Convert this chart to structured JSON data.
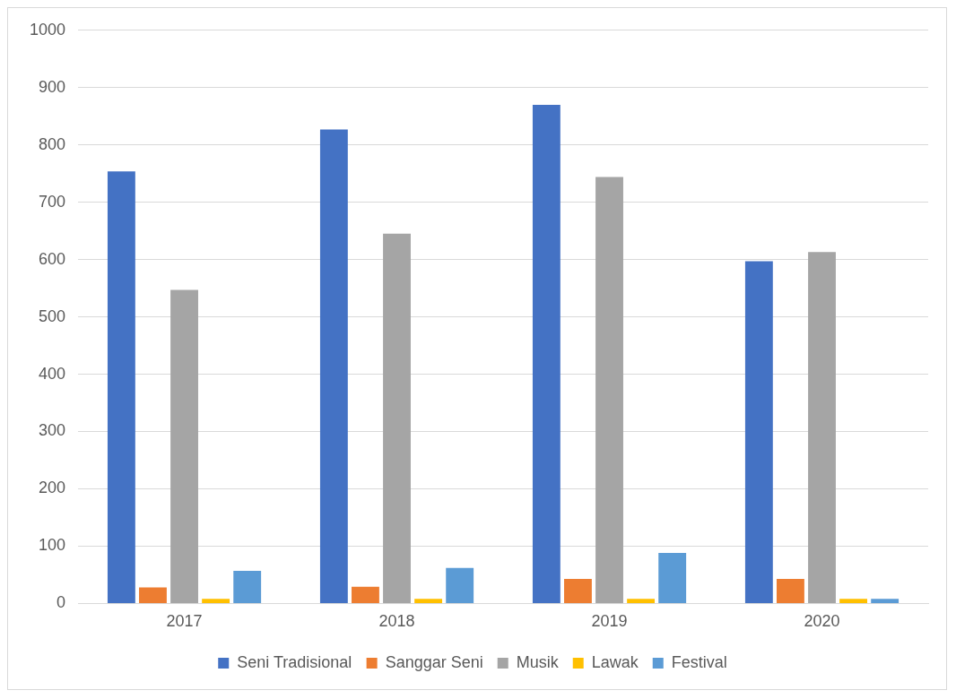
{
  "chart_data": {
    "type": "bar",
    "categories": [
      "2017",
      "2018",
      "2019",
      "2020"
    ],
    "series": [
      {
        "name": "Seni Tradisional",
        "color": "#4472c4",
        "values": [
          754,
          827,
          870,
          597
        ]
      },
      {
        "name": "Sanggar Seni",
        "color": "#ed7d31",
        "values": [
          28,
          29,
          43,
          43
        ]
      },
      {
        "name": "Musik",
        "color": "#a5a5a5",
        "values": [
          547,
          645,
          744,
          613
        ]
      },
      {
        "name": "Lawak",
        "color": "#ffc000",
        "values": [
          8,
          8,
          8,
          8
        ]
      },
      {
        "name": "Festival",
        "color": "#5b9bd5",
        "values": [
          57,
          62,
          88,
          8
        ]
      }
    ],
    "ylim": [
      0,
      1000
    ],
    "yticks": [
      0,
      100,
      200,
      300,
      400,
      500,
      600,
      700,
      800,
      900,
      1000
    ],
    "grid": "y",
    "legend": "bottom"
  }
}
